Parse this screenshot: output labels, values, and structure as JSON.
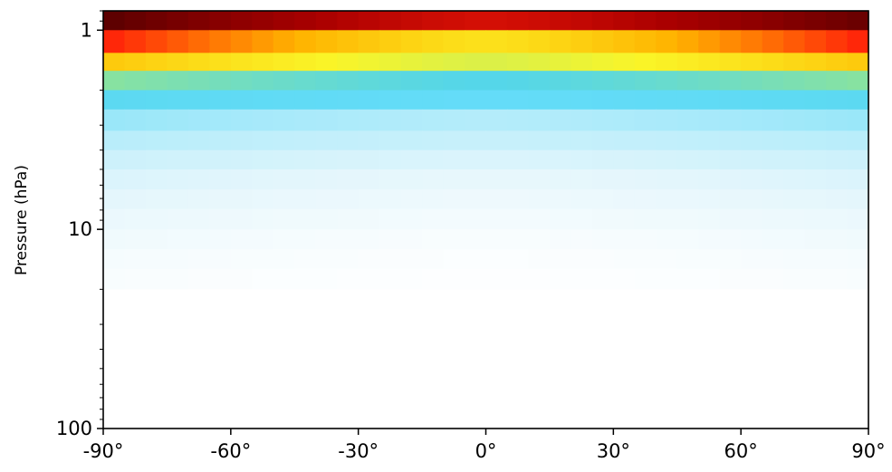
{
  "chart_data": {
    "type": "heatmap",
    "title": "",
    "xlabel": "",
    "ylabel": "Pressure (hPa)",
    "y_scale": "log",
    "y_inverted": true,
    "xlim": [
      -90,
      90
    ],
    "ylim": [
      0.8,
      100
    ],
    "x_ticks": [
      -90,
      -60,
      -30,
      0,
      30,
      60,
      90
    ],
    "x_tick_labels": [
      "-90°",
      "-60°",
      "-30°",
      "0°",
      "30°",
      "60°",
      "90°"
    ],
    "y_ticks": [
      1,
      10,
      100
    ],
    "y_tick_labels": [
      "1",
      "10",
      "100"
    ],
    "grid": false,
    "colorscale": "white-lightblue-cyan-green-yellow-orange-red-darkred",
    "colorbar": "none",
    "x_bins": 36,
    "y_bin_edges": [
      0.8,
      1.0,
      1.3,
      1.6,
      2.0,
      2.5,
      3.2,
      4.0,
      5.0,
      6.3,
      7.9,
      10.0,
      12.6,
      15.8,
      20.0,
      100.0
    ],
    "values_description_levels_top_to_bottom": [
      {
        "level": "0.8-1.0",
        "poles": 0.98,
        "equator": 0.82
      },
      {
        "level": "1.0-1.3",
        "poles": 0.76,
        "equator": 0.58
      },
      {
        "level": "1.3-1.6",
        "poles": 0.62,
        "equator": 0.52
      },
      {
        "level": "1.6-2.0",
        "poles": 0.44,
        "equator": 0.38
      },
      {
        "level": "2.0-2.5",
        "poles": 0.34,
        "equator": 0.3
      },
      {
        "level": "2.5-3.2",
        "poles": 0.22,
        "equator": 0.18
      },
      {
        "level": "3.2-4.0",
        "poles": 0.17,
        "equator": 0.14
      },
      {
        "level": "4.0-5.0",
        "poles": 0.13,
        "equator": 0.1
      },
      {
        "level": "5.0-6.3",
        "poles": 0.1,
        "equator": 0.07
      },
      {
        "level": "6.3-7.9",
        "poles": 0.08,
        "equator": 0.05
      },
      {
        "level": "7.9-10.0",
        "poles": 0.06,
        "equator": 0.035
      },
      {
        "level": "10.0-12.6",
        "poles": 0.045,
        "equator": 0.02
      },
      {
        "level": "12.6-15.8",
        "poles": 0.03,
        "equator": 0.012
      },
      {
        "level": "15.8-20.0",
        "poles": 0.02,
        "equator": 0.006
      },
      {
        "level": "20.0-100",
        "poles": 0.0,
        "equator": 0.0
      }
    ]
  }
}
